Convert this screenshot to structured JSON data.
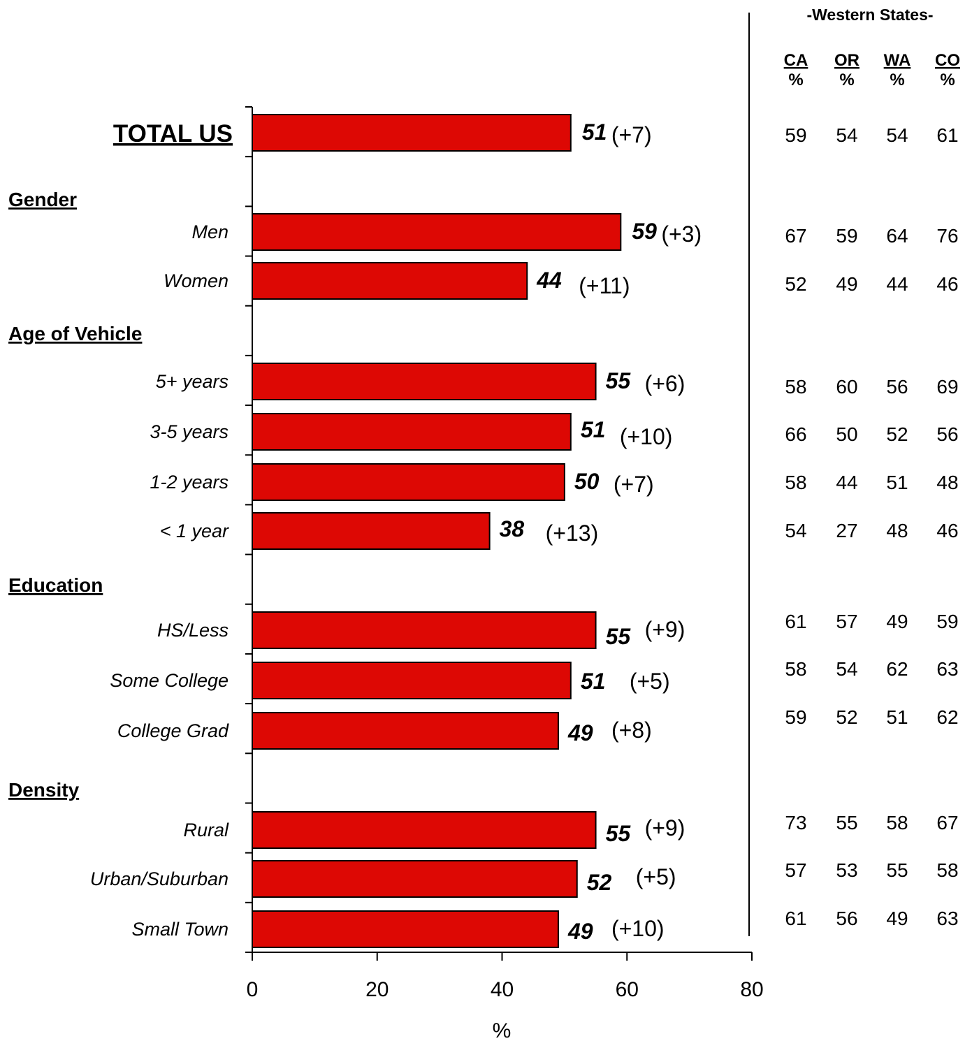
{
  "chart_data": {
    "type": "bar",
    "orientation": "horizontal",
    "xlabel": "%",
    "xlim": [
      0,
      80
    ],
    "xticks": [
      0,
      20,
      40,
      60,
      80
    ],
    "bar_color": "#dd0804",
    "groups": [
      {
        "label": "",
        "rows": [
          0
        ]
      },
      {
        "label": "Gender",
        "rows": [
          1,
          2
        ]
      },
      {
        "label": "Age of Vehicle",
        "rows": [
          3,
          4,
          5,
          6
        ]
      },
      {
        "label": "Education",
        "rows": [
          7,
          8,
          9
        ]
      },
      {
        "label": "Density",
        "rows": [
          10,
          11,
          12
        ]
      }
    ],
    "categories": [
      "TOTAL US",
      "Men",
      "Women",
      "5+ years",
      "3-5 years",
      "1-2 years",
      "< 1 year",
      "HS/Less",
      "Some College",
      "College Grad",
      "Rural",
      "Urban/Suburban",
      "Small Town"
    ],
    "values": [
      51,
      59,
      44,
      55,
      51,
      50,
      38,
      55,
      51,
      49,
      55,
      52,
      49
    ],
    "changes": [
      "(+7)",
      "(+3)",
      "(+11)",
      "(+6)",
      "(+10)",
      "(+7)",
      "(+13)",
      "(+9)",
      "(+5)",
      "(+8)",
      "(+9)",
      "(+5)",
      "(+10)"
    ],
    "side_table": {
      "title": "-Western States-",
      "columns": [
        {
          "code": "CA",
          "unit": "%"
        },
        {
          "code": "OR",
          "unit": "%"
        },
        {
          "code": "WA",
          "unit": "%"
        },
        {
          "code": "CO",
          "unit": "%"
        }
      ],
      "rows": [
        [
          59,
          54,
          54,
          61
        ],
        [
          67,
          59,
          64,
          76
        ],
        [
          52,
          49,
          44,
          46
        ],
        [
          58,
          60,
          56,
          69
        ],
        [
          66,
          50,
          52,
          56
        ],
        [
          58,
          44,
          51,
          48
        ],
        [
          54,
          27,
          48,
          46
        ],
        [
          61,
          57,
          49,
          59
        ],
        [
          58,
          54,
          62,
          63
        ],
        [
          59,
          52,
          51,
          62
        ],
        [
          73,
          55,
          58,
          67
        ],
        [
          57,
          53,
          55,
          58
        ],
        [
          61,
          56,
          49,
          63
        ]
      ]
    }
  }
}
